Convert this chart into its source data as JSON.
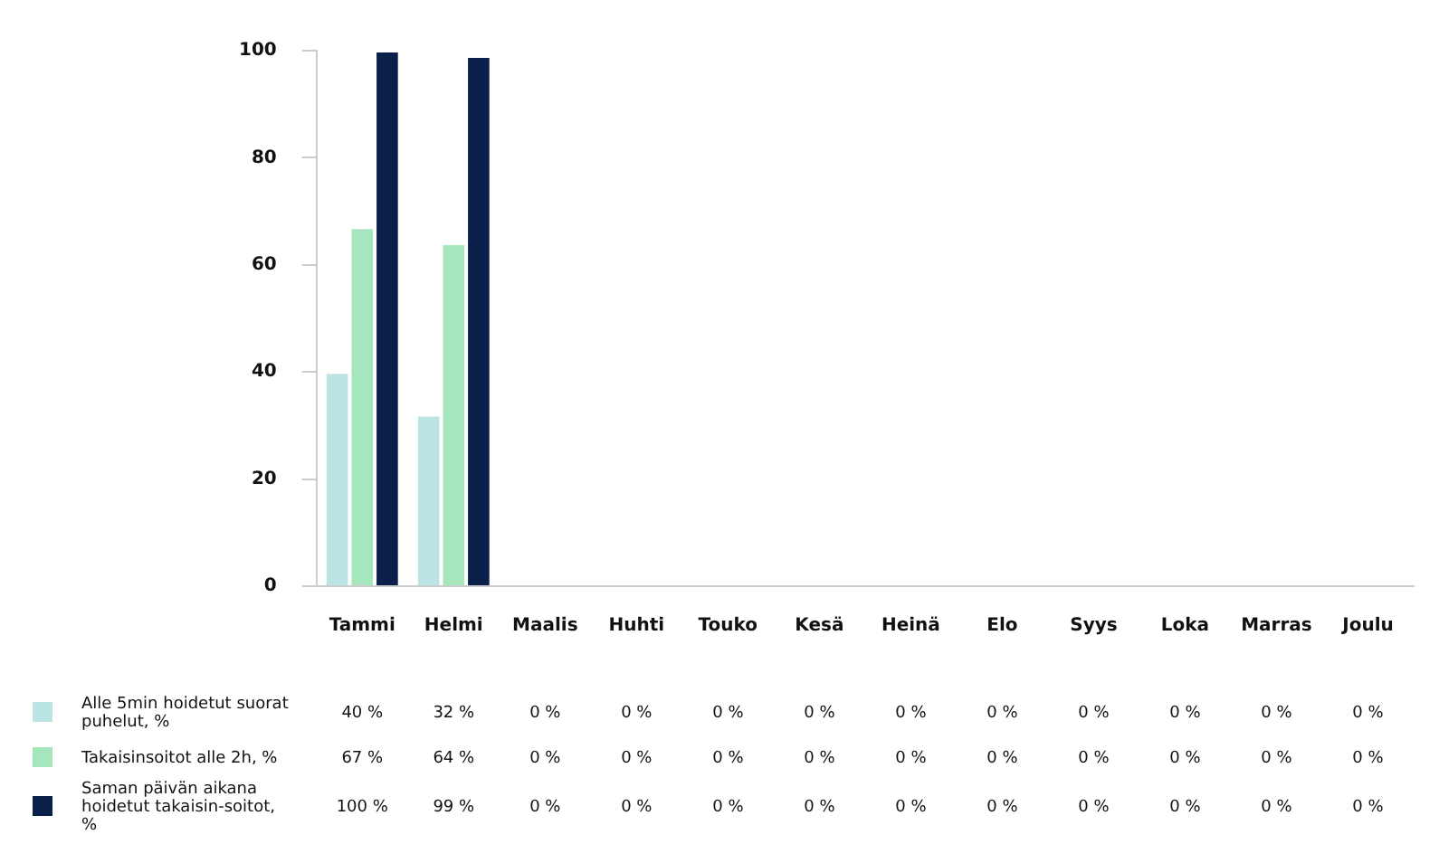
{
  "chart_data": {
    "type": "bar",
    "categories": [
      "Tammi",
      "Helmi",
      "Maalis",
      "Huhti",
      "Touko",
      "Kesä",
      "Heinä",
      "Elo",
      "Syys",
      "Loka",
      "Marras",
      "Joulu"
    ],
    "series": [
      {
        "name": "Alle 5min hoidetut suorat puhelut, %",
        "color": "#bde4e4",
        "values": [
          40,
          32,
          0,
          0,
          0,
          0,
          0,
          0,
          0,
          0,
          0,
          0
        ],
        "value_labels": [
          "40 %",
          "32 %",
          "0 %",
          "0 %",
          "0 %",
          "0 %",
          "0 %",
          "0 %",
          "0 %",
          "0 %",
          "0 %",
          "0 %"
        ]
      },
      {
        "name": "Takaisinsoitot alle 2h, %",
        "color": "#a5e6bc",
        "values": [
          67,
          64,
          0,
          0,
          0,
          0,
          0,
          0,
          0,
          0,
          0,
          0
        ],
        "value_labels": [
          "67 %",
          "64 %",
          "0 %",
          "0 %",
          "0 %",
          "0 %",
          "0 %",
          "0 %",
          "0 %",
          "0 %",
          "0 %",
          "0 %"
        ]
      },
      {
        "name": "Saman päivän aikana hoidetut takaisin-soitot, %",
        "color": "#0a1f4a",
        "values": [
          100,
          99,
          0,
          0,
          0,
          0,
          0,
          0,
          0,
          0,
          0,
          0
        ],
        "value_labels": [
          "100 %",
          "99 %",
          "0 %",
          "0 %",
          "0 %",
          "0 %",
          "0 %",
          "0 %",
          "0 %",
          "0 %",
          "0 %",
          "0 %"
        ]
      }
    ],
    "ylim": [
      0,
      100
    ],
    "yticks": [
      0,
      20,
      40,
      60,
      80,
      100
    ],
    "legend": "bottom"
  }
}
